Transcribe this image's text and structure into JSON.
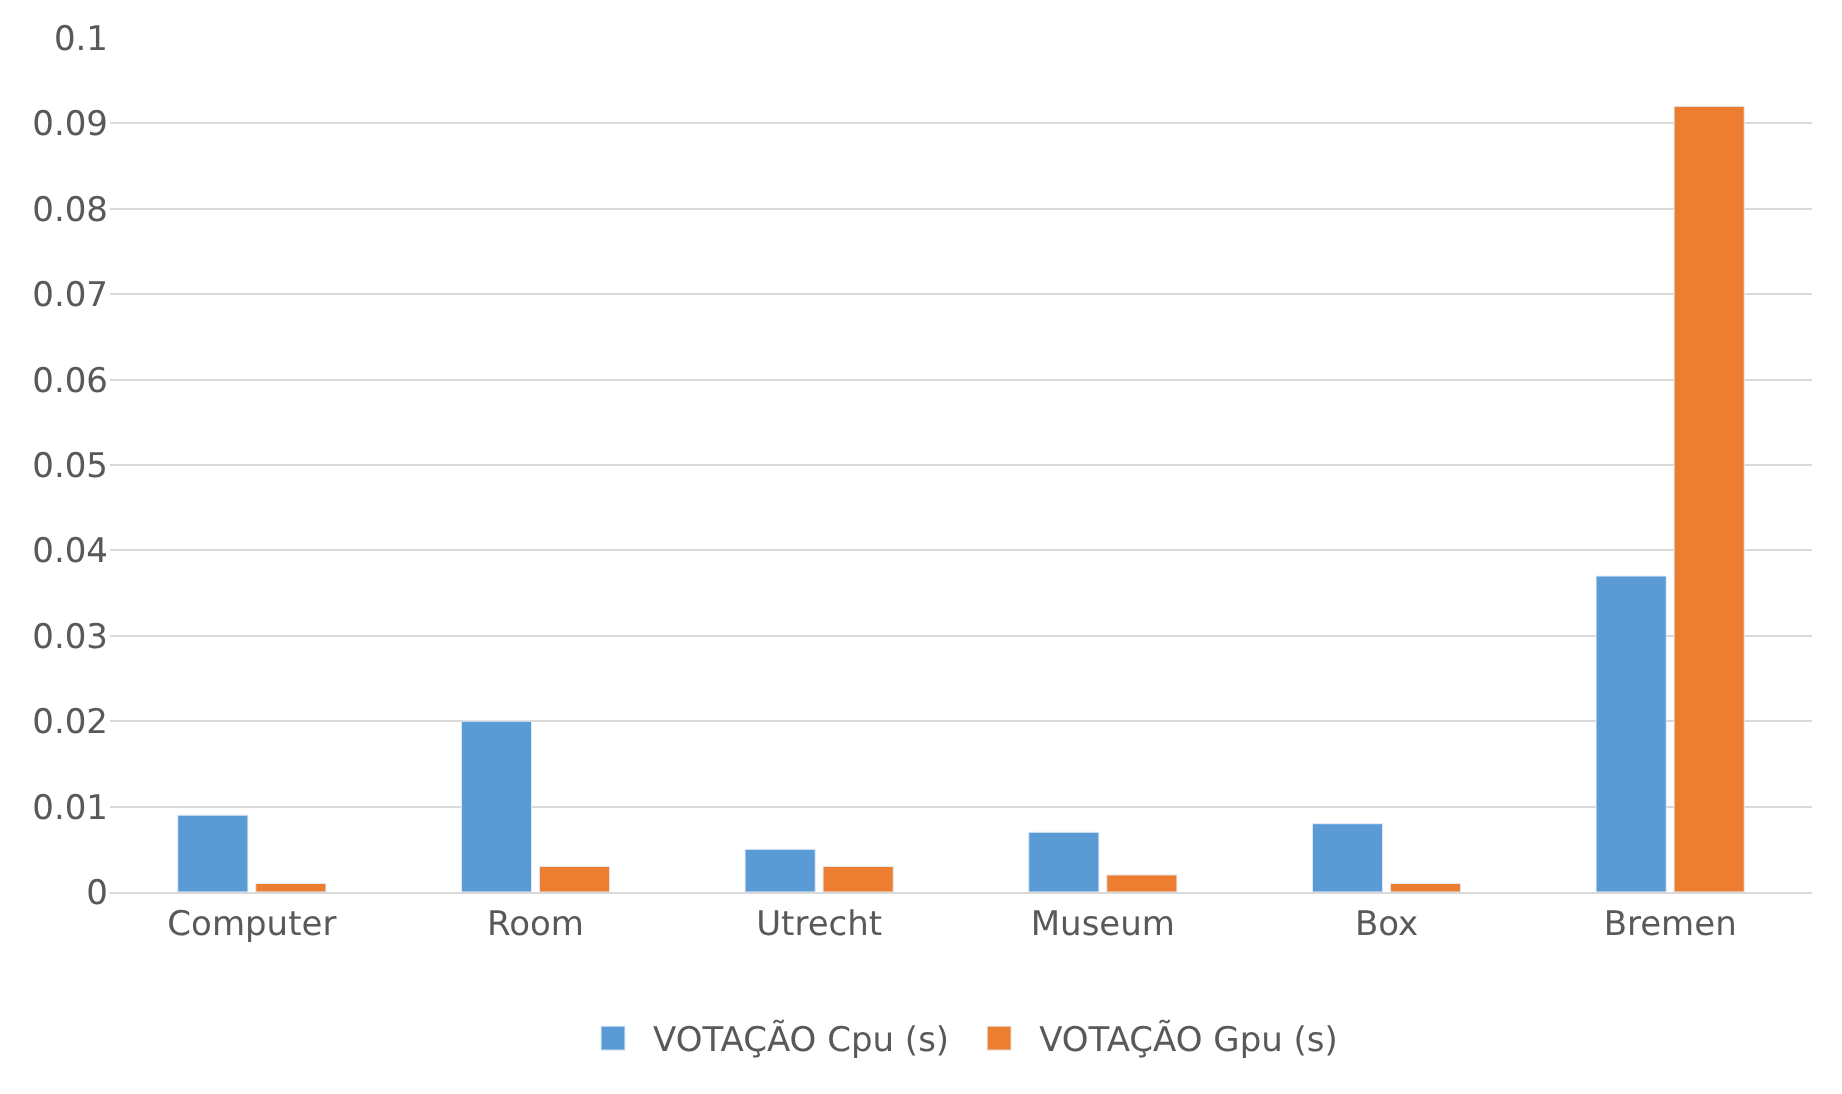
{
  "chart_data": {
    "type": "bar",
    "categories": [
      "Computer",
      "Room",
      "Utrecht",
      "Museum",
      "Box",
      "Bremen"
    ],
    "series": [
      {
        "name": "VOTAÇÃO Cpu (s)",
        "color": "#5b9bd5",
        "values": [
          0.009,
          0.02,
          0.005,
          0.007,
          0.008,
          0.037
        ]
      },
      {
        "name": "VOTAÇÃO Gpu (s)",
        "color": "#ed7d31",
        "values": [
          0.001,
          0.003,
          0.003,
          0.002,
          0.001,
          0.092
        ]
      }
    ],
    "ylim": [
      0,
      0.1
    ],
    "yticks": [
      0,
      0.01,
      0.02,
      0.03,
      0.04,
      0.05,
      0.06,
      0.07,
      0.08,
      0.09,
      0.1
    ],
    "grid": "y",
    "legend": "bottom"
  }
}
